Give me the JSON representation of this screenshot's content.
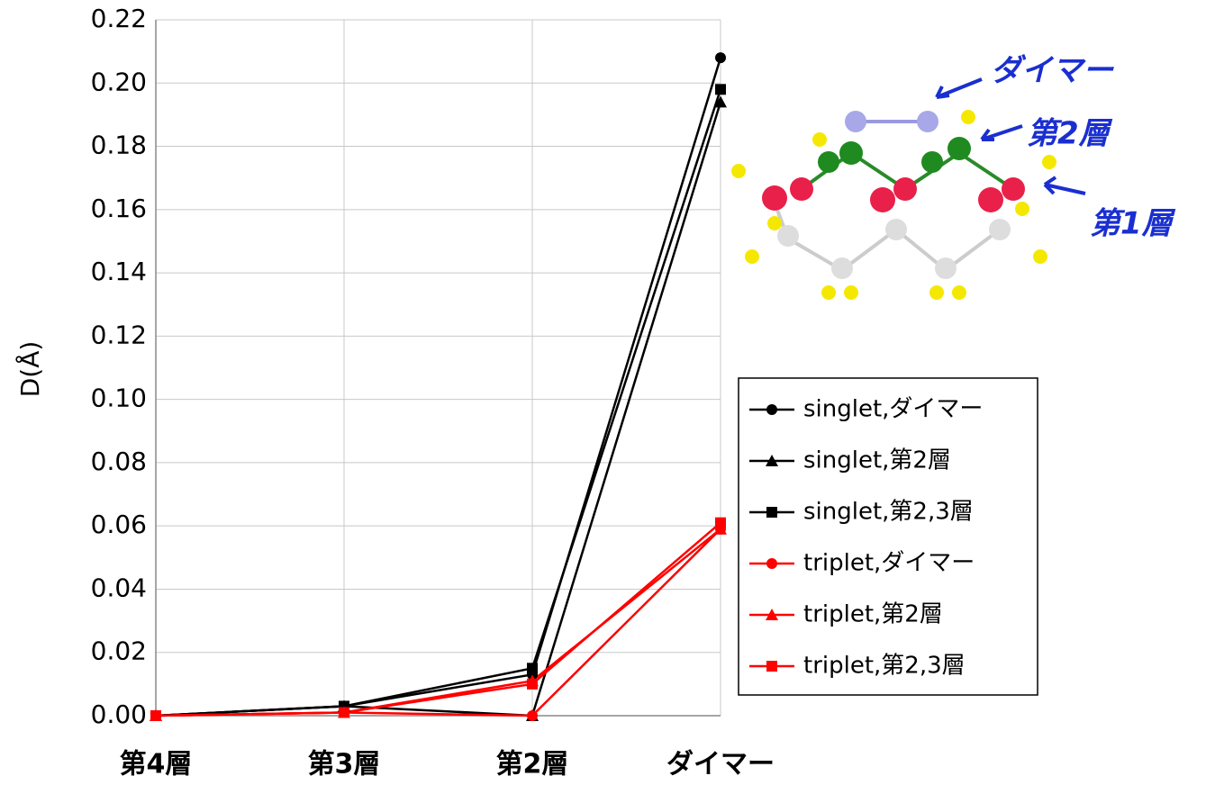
{
  "chart_data": {
    "type": "line",
    "y_label": "D(Å)",
    "categories": [
      "第4層",
      "第3層",
      "第2層",
      "ダイマー"
    ],
    "series": [
      {
        "name": "singlet,ダイマー",
        "color": "#000000",
        "marker": "circle",
        "values": [
          0,
          0.003,
          0.013,
          0.208
        ]
      },
      {
        "name": "singlet,第2層",
        "color": "#000000",
        "marker": "triangle",
        "values": [
          0,
          0.003,
          0.0,
          0.194
        ]
      },
      {
        "name": "singlet,第2,3層",
        "color": "#000000",
        "marker": "square",
        "values": [
          0,
          0.003,
          0.015,
          0.198
        ]
      },
      {
        "name": "triplet,ダイマー",
        "color": "#ff0000",
        "marker": "circle",
        "values": [
          0,
          0.001,
          0.0,
          0.059
        ]
      },
      {
        "name": "triplet,第2層",
        "color": "#ff0000",
        "marker": "triangle",
        "values": [
          0,
          0.001,
          0.011,
          0.059
        ]
      },
      {
        "name": "triplet,第2,3層",
        "color": "#ff0000",
        "marker": "square",
        "values": [
          0,
          0.001,
          0.01,
          0.061
        ]
      }
    ],
    "ylim": [
      0,
      0.22
    ],
    "yticks": [
      {
        "value": 0,
        "label": "0.00"
      },
      0.02,
      0.04,
      0.06,
      0.08,
      {
        "value": 0.1,
        "label": "0.10"
      },
      0.12,
      0.14,
      0.16,
      0.18,
      {
        "value": 0.2,
        "label": "0.20"
      },
      0.22
    ],
    "grid": true,
    "legend": "right",
    "annotations": [
      "ダイマー",
      "第2層",
      "第1層"
    ]
  }
}
